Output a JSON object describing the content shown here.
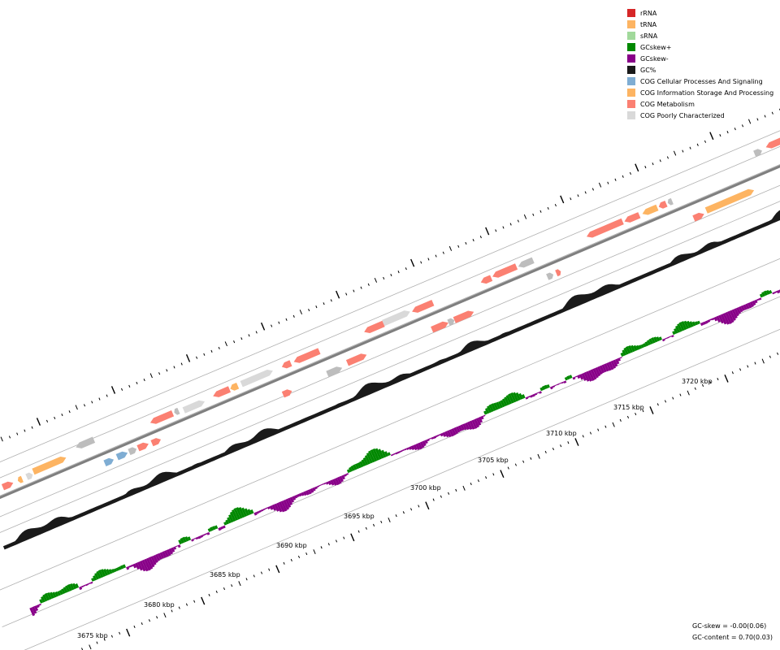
{
  "legend": {
    "items": [
      {
        "label": "rRNA",
        "color": "#d62728"
      },
      {
        "label": "tRNA",
        "color": "#fdb462"
      },
      {
        "label": "sRNA",
        "color": "#a1d99b"
      },
      {
        "label": "GCskew+",
        "color": "#008800"
      },
      {
        "label": "GCskew-",
        "color": "#880088"
      },
      {
        "label": "GC%",
        "color": "#1a1a1a"
      },
      {
        "label": "COG Cellular Processes And Signaling",
        "color": "#7fadd3"
      },
      {
        "label": "COG Information Storage And Processing",
        "color": "#fdb462"
      },
      {
        "label": "COG Metabolism",
        "color": "#fb8072"
      },
      {
        "label": "COG Poorly Characterized",
        "color": "#d9d9d9"
      }
    ]
  },
  "axis": {
    "labels": [
      "3675 kbp",
      "3680 kbp",
      "3685 kbp",
      "3690 kbp",
      "3695 kbp",
      "3700 kbp",
      "3705 kbp",
      "3710 kbp",
      "3715 kbp",
      "3720 kbp"
    ]
  },
  "stats": {
    "gc_skew": "GC-skew = -0.00(0.06)",
    "gc_content": "GC-content = 0.70(0.03)"
  },
  "colors": {
    "backbone": "#7f7f7f",
    "gc_content": "#1a1a1a",
    "skew_pos": "#008800",
    "skew_neg": "#880088",
    "track_line": "#b0b0b0",
    "unknown_cds": "#bdbdbd"
  }
}
